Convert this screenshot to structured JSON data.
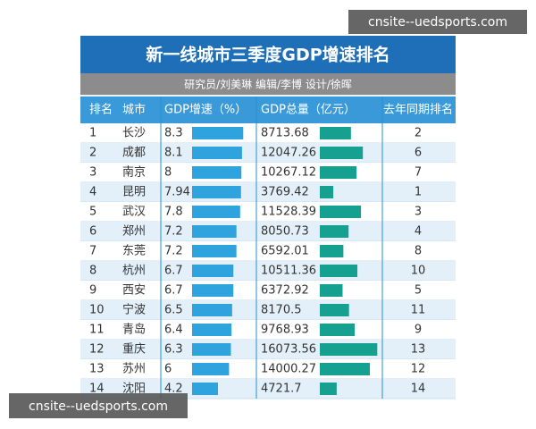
{
  "header": {
    "title": "新一线城市三季度GDP增速排名",
    "credits": "研究员/刘美琳 编辑/李博 设计/徐晖"
  },
  "table": {
    "columns": [
      "排名",
      "城市",
      "GDP增速（%）",
      "GDP总量（亿元）",
      "去年同期排名"
    ],
    "rows": [
      [
        "1",
        "长沙",
        "8.3",
        "8713.68",
        "2"
      ],
      [
        "2",
        "成都",
        "8.1",
        "12047.26",
        "6"
      ],
      [
        "3",
        "南京",
        "8",
        "10267.12",
        "7"
      ],
      [
        "4",
        "昆明",
        "7.94",
        "3769.42",
        "1"
      ],
      [
        "5",
        "武汉",
        "7.8",
        "11528.39",
        "3"
      ],
      [
        "6",
        "郑州",
        "7.2",
        "8050.73",
        "4"
      ],
      [
        "7",
        "东莞",
        "7.2",
        "6592.01",
        "8"
      ],
      [
        "8",
        "杭州",
        "6.7",
        "10511.36",
        "10"
      ],
      [
        "9",
        "西安",
        "6.7",
        "6372.92",
        "5"
      ],
      [
        "10",
        "宁波",
        "6.5",
        "8170.5",
        "11"
      ],
      [
        "11",
        "青岛",
        "6.4",
        "9768.93",
        "9"
      ],
      [
        "12",
        "重庆",
        "6.3",
        "16073.56",
        "13"
      ],
      [
        "13",
        "苏州",
        "6",
        "14000.27",
        "12"
      ],
      [
        "14",
        "沈阳",
        "4.2",
        "4721.7",
        "14"
      ]
    ]
  },
  "watermarks": [
    "cnsite--uedsports.com",
    "cnsite--uedsports.com"
  ]
}
